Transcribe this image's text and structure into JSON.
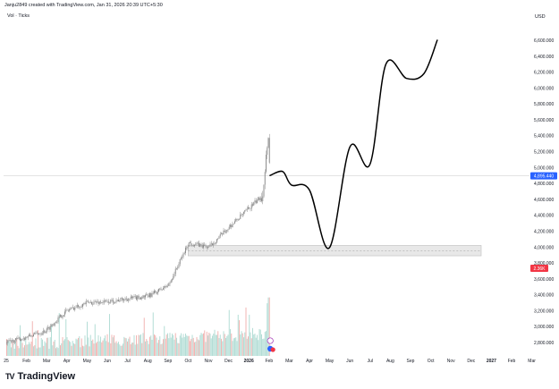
{
  "header": {
    "credit": "Janju2849 created with TradingView.com, Jan 31, 2026 20:39 UTC+5:30",
    "symbol_line": "Vol · Ticks",
    "currency": "USD"
  },
  "branding": {
    "logo_mark": "TV",
    "logo_text": "TradingView"
  },
  "colors": {
    "candle": "#8c8c8c",
    "projection": "#000000",
    "volume_up": "#b4ddd6",
    "volume_down": "#f2b5b3",
    "price_badge": "#2962ff",
    "volume_badge": "#f23645",
    "zone": "#e8e8e8"
  },
  "badges": {
    "last_price": "4,895.440",
    "volume": "2.36K"
  },
  "chart_data": {
    "type": "candlestick",
    "title": "",
    "xlabel": "",
    "ylabel": "",
    "y_ticks": [
      "6,600.000",
      "6,400.000",
      "6,200.000",
      "6,000.000",
      "5,800.000",
      "5,600.000",
      "5,400.000",
      "5,200.000",
      "5,000.000",
      "4,800.000",
      "4,600.000",
      "4,400.000",
      "4,200.000",
      "4,000.000",
      "3,800.000",
      "3,600.000",
      "3,400.000",
      "3,200.000",
      "3,000.000",
      "2,800.000"
    ],
    "ylim": [
      2700,
      6700
    ],
    "x_ticks": [
      "25",
      "Feb",
      "Mar",
      "Apr",
      "May",
      "Jun",
      "Jul",
      "Aug",
      "Sep",
      "Oct",
      "Nov",
      "Dec",
      "2026",
      "Feb",
      "Mar",
      "Apr",
      "May",
      "Jun",
      "Jul",
      "Aug",
      "Sep",
      "Oct",
      "Nov",
      "Dec",
      "2027",
      "Feb",
      "Mar"
    ],
    "price_path": [
      [
        "2025-01",
        2800
      ],
      [
        "2025-02",
        2870
      ],
      [
        "2025-03",
        2950
      ],
      [
        "2025-04",
        3200
      ],
      [
        "2025-05",
        3300
      ],
      [
        "2025-06",
        3310
      ],
      [
        "2025-07",
        3350
      ],
      [
        "2025-08",
        3380
      ],
      [
        "2025-09",
        3520
      ],
      [
        "2025-10",
        4050
      ],
      [
        "2025-11",
        4000
      ],
      [
        "2025-12",
        4250
      ],
      [
        "2026-01-20",
        4650
      ],
      [
        "2026-01-29",
        5450
      ],
      [
        "2026-01-31",
        4895
      ]
    ],
    "projection_path": [
      [
        "2026-02-01",
        4900
      ],
      [
        "2026-02-20",
        4950
      ],
      [
        "2026-03-05",
        4780
      ],
      [
        "2026-04-01",
        4720
      ],
      [
        "2026-05-01",
        3990
      ],
      [
        "2026-06-01",
        5260
      ],
      [
        "2026-07-01",
        5040
      ],
      [
        "2026-07-25",
        6300
      ],
      [
        "2026-08-25",
        6120
      ],
      [
        "2026-09-20",
        6180
      ],
      [
        "2026-10-10",
        6600
      ]
    ],
    "support_zone": {
      "low": 3890,
      "high": 4020,
      "from": "2025-10-01",
      "to": "2026-12-15"
    },
    "last_price": 4895.44,
    "volume_last": "2.36K"
  }
}
